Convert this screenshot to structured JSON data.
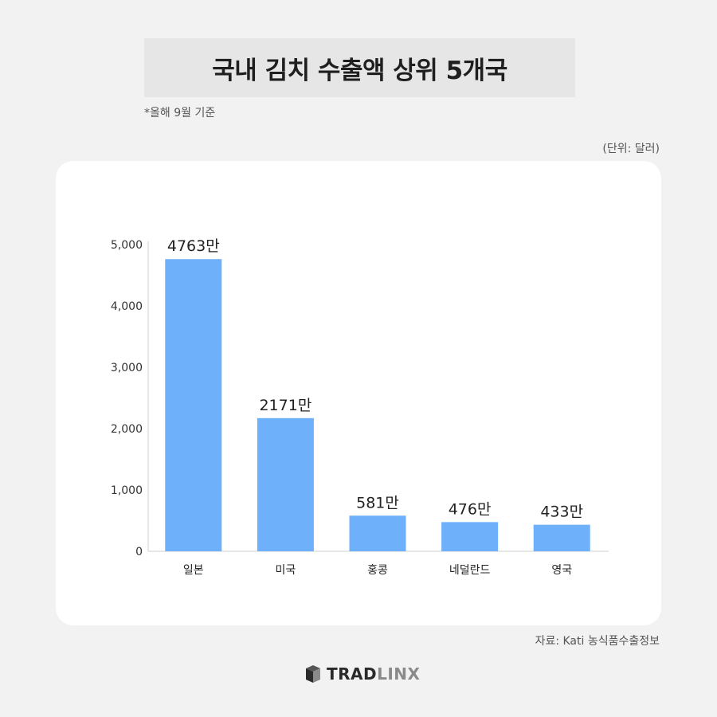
{
  "header": {
    "title": "국내 김치 수출액 상위 5개국",
    "note": "*올해 9월 기준",
    "unit": "(단위: 달러)"
  },
  "footer": {
    "source": "자료: Kati 농식품수출정보",
    "logo_part1": "TRAD",
    "logo_part2": "LINX"
  },
  "colors": {
    "bar": "#6eb1fa",
    "background": "#f2f2f2",
    "card": "#ffffff"
  },
  "chart_data": {
    "type": "bar",
    "categories": [
      "일본",
      "미국",
      "홍콩",
      "네덜란드",
      "영국"
    ],
    "values": [
      4763,
      2171,
      581,
      476,
      433
    ],
    "data_labels": [
      "4763만",
      "2171만",
      "581만",
      "476만",
      "433만"
    ],
    "ylim": [
      0,
      5000
    ],
    "yticks": [
      0,
      1000,
      2000,
      3000,
      4000,
      5000
    ],
    "ytick_labels": [
      "0",
      "1,000",
      "2,000",
      "3,000",
      "4,000",
      "5,000"
    ],
    "grid": false
  }
}
